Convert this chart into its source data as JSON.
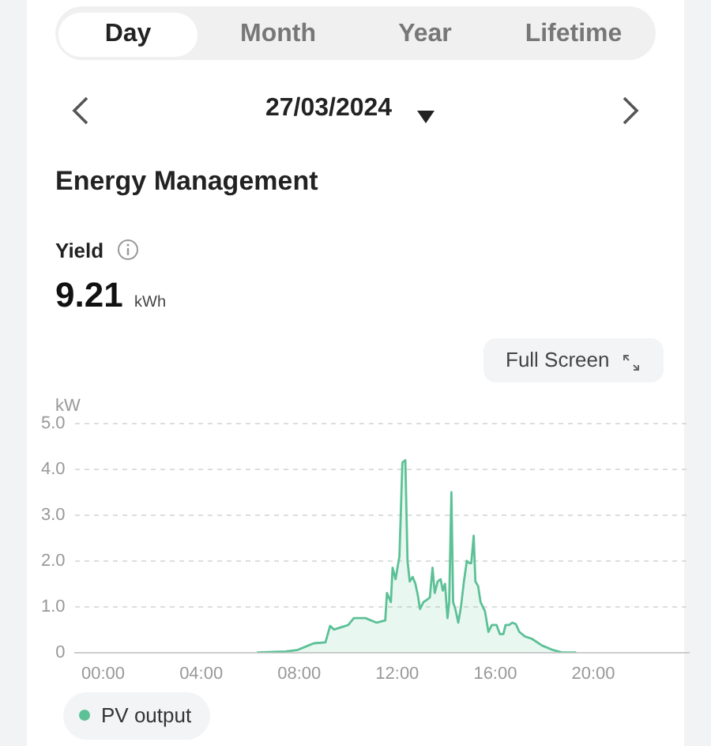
{
  "chart_data": {
    "type": "area",
    "title": "Energy Management",
    "ylabel": "kW",
    "annotations": [
      "Day",
      "Month",
      "Year",
      "Lifetime",
      "27/03/2024",
      "Yield",
      "9.21",
      "kWh",
      "Full Screen"
    ],
    "x": [
      6.28,
      7.44,
      7.91,
      8.37,
      8.6,
      9.07,
      9.26,
      9.42,
      10.0,
      10.23,
      10.7,
      11.16,
      11.51,
      11.58,
      11.74,
      11.81,
      11.93,
      12.09,
      12.21,
      12.33,
      12.42,
      12.51,
      12.63,
      12.74,
      12.84,
      12.93,
      13.07,
      13.21,
      13.33,
      13.44,
      13.53,
      13.65,
      13.77,
      13.86,
      13.95,
      14.05,
      14.12,
      14.21,
      14.28,
      14.37,
      14.49,
      14.6,
      14.72,
      14.84,
      14.95,
      15.02,
      15.12,
      15.19,
      15.3,
      15.4,
      15.49,
      15.58,
      15.72,
      15.86,
      16.05,
      16.19,
      16.33,
      16.42,
      16.56,
      16.7,
      16.84,
      16.98,
      17.21,
      17.49,
      17.91,
      18.37,
      18.72,
      19.3
    ],
    "series": [
      {
        "name": "PV output",
        "color": "#5cc196",
        "values": [
          0,
          0.02,
          0.05,
          0.15,
          0.2,
          0.22,
          0.58,
          0.5,
          0.6,
          0.75,
          0.75,
          0.65,
          0.7,
          1.3,
          1.1,
          1.85,
          1.6,
          2.1,
          4.15,
          4.2,
          2.0,
          1.55,
          1.65,
          1.5,
          1.25,
          0.95,
          1.1,
          1.15,
          1.2,
          1.85,
          1.3,
          1.55,
          1.6,
          1.35,
          1.5,
          0.75,
          1.1,
          3.5,
          1.1,
          0.95,
          0.65,
          1.0,
          1.55,
          2.0,
          1.95,
          1.95,
          2.55,
          1.55,
          1.45,
          1.1,
          1.0,
          0.9,
          0.45,
          0.6,
          0.6,
          0.4,
          0.4,
          0.6,
          0.6,
          0.65,
          0.62,
          0.45,
          0.35,
          0.3,
          0.15,
          0.05,
          0,
          0
        ]
      }
    ],
    "xlim": [
      -1.16,
      23.9
    ],
    "xticks": [
      {
        "value": 0,
        "label": "00:00"
      },
      {
        "value": 4,
        "label": "04:00"
      },
      {
        "value": 8,
        "label": "08:00"
      },
      {
        "value": 12,
        "label": "12:00"
      },
      {
        "value": 16,
        "label": "16:00"
      },
      {
        "value": 20,
        "label": "20:00"
      }
    ],
    "ylim": [
      0,
      5
    ],
    "yticks": [
      0,
      {
        "value": 1,
        "label": "1.0"
      },
      {
        "value": 2,
        "label": "2.0"
      },
      {
        "value": 3,
        "label": "3.0"
      },
      {
        "value": 4,
        "label": "4.0"
      },
      {
        "value": 5,
        "label": "5.0"
      }
    ],
    "grid": "y",
    "legend": "bottom left",
    "marker": "none",
    "line_style": "solid"
  }
}
